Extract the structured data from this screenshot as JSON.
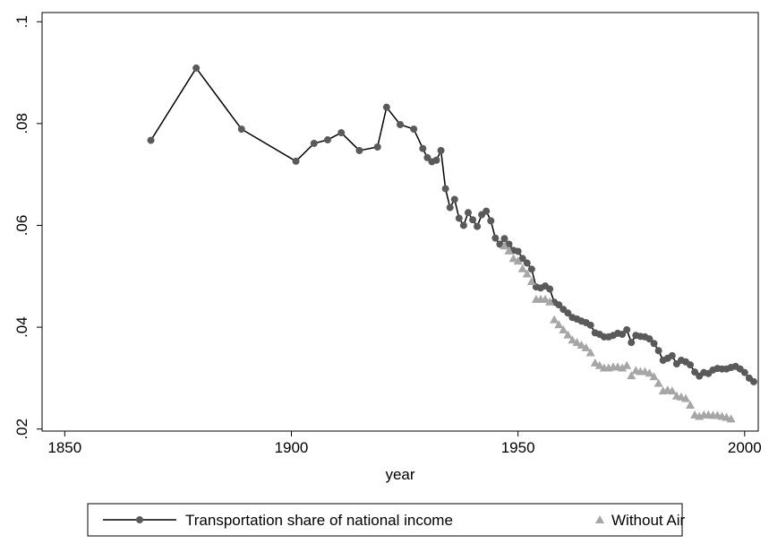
{
  "chart_data": {
    "type": "line",
    "xlabel": "year",
    "xlim": [
      1845,
      2003
    ],
    "xticks": [
      1850,
      1900,
      1950,
      2000
    ],
    "ylim": [
      0.0196,
      0.1018
    ],
    "yticks": [
      {
        "value": 0.02,
        "label": ".02"
      },
      {
        "value": 0.04,
        "label": ".04"
      },
      {
        "value": 0.06,
        "label": ".06"
      },
      {
        "value": 0.08,
        "label": ".08"
      },
      {
        "value": 0.1,
        "label": ".1"
      }
    ],
    "legend": "bottom",
    "series": [
      {
        "name": "Transportation share of national income",
        "color": "#000000",
        "marker_color": "#5a5a5a",
        "marker": "circle",
        "line": true,
        "x": [
          1869,
          1879,
          1889,
          1901,
          1905,
          1908,
          1911,
          1915,
          1919,
          1921,
          1924,
          1927,
          1929,
          1930,
          1931,
          1932,
          1933,
          1934,
          1935,
          1936,
          1937,
          1938,
          1939,
          1940,
          1941,
          1942,
          1943,
          1944,
          1945,
          1946,
          1947,
          1948,
          1949,
          1950,
          1951,
          1952,
          1953,
          1954,
          1955,
          1956,
          1957,
          1958,
          1959,
          1960,
          1961,
          1962,
          1963,
          1964,
          1965,
          1966,
          1967,
          1968,
          1969,
          1970,
          1971,
          1972,
          1973,
          1974,
          1975,
          1976,
          1977,
          1978,
          1979,
          1980,
          1981,
          1982,
          1983,
          1984,
          1985,
          1986,
          1987,
          1988,
          1989,
          1990,
          1991,
          1992,
          1993,
          1994,
          1995,
          1996,
          1997,
          1998,
          1999,
          2000,
          2001,
          2002
        ],
        "values": [
          0.0767,
          0.0909,
          0.0789,
          0.0726,
          0.0761,
          0.0768,
          0.0782,
          0.0747,
          0.0754,
          0.0832,
          0.0798,
          0.0789,
          0.0751,
          0.0733,
          0.0725,
          0.0728,
          0.0747,
          0.0672,
          0.0635,
          0.0651,
          0.0614,
          0.06,
          0.0625,
          0.0611,
          0.0598,
          0.0621,
          0.0628,
          0.0609,
          0.0575,
          0.0563,
          0.0574,
          0.0563,
          0.0551,
          0.0549,
          0.0535,
          0.0526,
          0.0514,
          0.0479,
          0.0477,
          0.0481,
          0.0475,
          0.0449,
          0.0444,
          0.0435,
          0.0428,
          0.0419,
          0.0416,
          0.0412,
          0.0409,
          0.0404,
          0.0389,
          0.0386,
          0.0381,
          0.0381,
          0.0384,
          0.0388,
          0.0386,
          0.0395,
          0.037,
          0.0384,
          0.0382,
          0.0381,
          0.0377,
          0.0368,
          0.0354,
          0.0335,
          0.0339,
          0.0344,
          0.0328,
          0.0335,
          0.0332,
          0.0326,
          0.0312,
          0.0304,
          0.0311,
          0.0309,
          0.0316,
          0.0319,
          0.0318,
          0.0318,
          0.0321,
          0.0323,
          0.0318,
          0.0311,
          0.03,
          0.0293
        ]
      },
      {
        "name": "Without Air",
        "color": "#a6a6a6",
        "marker_color": "#a6a6a6",
        "marker": "triangle",
        "line": false,
        "x": [
          1947,
          1948,
          1949,
          1950,
          1951,
          1952,
          1953,
          1954,
          1955,
          1956,
          1957,
          1958,
          1959,
          1960,
          1961,
          1962,
          1963,
          1964,
          1965,
          1966,
          1967,
          1968,
          1969,
          1970,
          1971,
          1972,
          1973,
          1974,
          1975,
          1976,
          1977,
          1978,
          1979,
          1980,
          1981,
          1982,
          1983,
          1984,
          1985,
          1986,
          1987,
          1988,
          1989,
          1990,
          1991,
          1992,
          1993,
          1994,
          1995,
          1996,
          1997
        ],
        "values": [
          0.056,
          0.055,
          0.0535,
          0.053,
          0.0515,
          0.0505,
          0.049,
          0.0455,
          0.0455,
          0.0455,
          0.045,
          0.0415,
          0.0405,
          0.0395,
          0.0385,
          0.0375,
          0.037,
          0.0365,
          0.036,
          0.035,
          0.033,
          0.0325,
          0.032,
          0.032,
          0.0322,
          0.0322,
          0.032,
          0.0325,
          0.0305,
          0.0315,
          0.0313,
          0.0313,
          0.031,
          0.0303,
          0.029,
          0.0275,
          0.0277,
          0.0275,
          0.0265,
          0.0263,
          0.026,
          0.0247,
          0.0228,
          0.0225,
          0.0228,
          0.0228,
          0.0227,
          0.0227,
          0.0225,
          0.0223,
          0.022
        ]
      }
    ]
  }
}
